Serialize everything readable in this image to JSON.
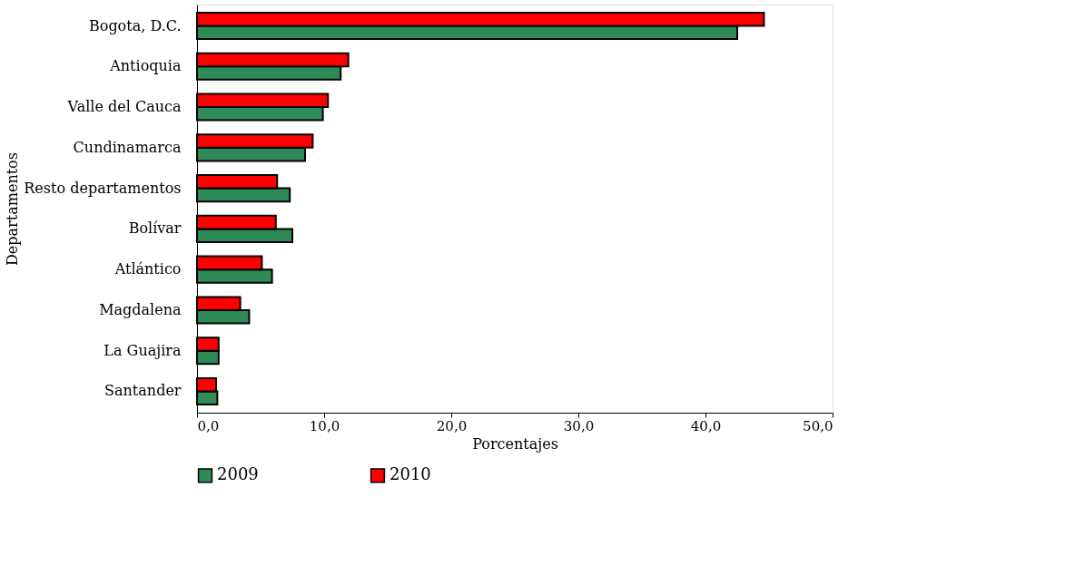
{
  "chart_data": {
    "type": "bar",
    "orientation": "horizontal",
    "xlabel": "Porcentajes",
    "ylabel": "Departamentos",
    "categories": [
      "Bogota, D.C.",
      "Antioquia",
      "Valle del Cauca",
      "Cundinamarca",
      "Resto departamentos",
      "Bolívar",
      "Atlántico",
      "Magdalena",
      "La Guajira",
      "Santander"
    ],
    "series": [
      {
        "name": "2009",
        "color": "#2e8b57",
        "values": [
          42.5,
          11.3,
          9.9,
          8.5,
          7.3,
          7.5,
          5.9,
          4.1,
          1.7,
          1.6
        ]
      },
      {
        "name": "2010",
        "color": "#ff0000",
        "values": [
          44.6,
          11.9,
          10.3,
          9.1,
          6.3,
          6.2,
          5.1,
          3.4,
          1.7,
          1.5
        ]
      }
    ],
    "xlim": [
      0,
      50
    ],
    "xticks": [
      {
        "value": 0,
        "label": "0,0"
      },
      {
        "value": 10,
        "label": "10,0"
      },
      {
        "value": 20,
        "label": "20,0"
      },
      {
        "value": 30,
        "label": "30,0"
      },
      {
        "value": 40,
        "label": "40,0"
      },
      {
        "value": 50,
        "label": "50,0"
      }
    ],
    "grid": false,
    "legend": "bottom"
  }
}
